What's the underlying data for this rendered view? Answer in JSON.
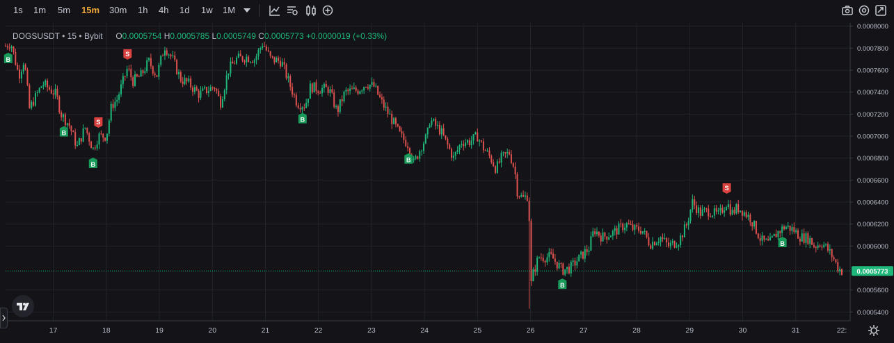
{
  "toolbar": {
    "timeframes": [
      "1s",
      "1m",
      "5m",
      "15m",
      "30m",
      "1h",
      "4h",
      "1d",
      "1w",
      "1M"
    ],
    "active_timeframe": "15m",
    "icons": [
      "chevron-down-icon",
      "indicator-line-icon",
      "compare-icon",
      "candles-icon",
      "plus-circle-icon"
    ],
    "right_icons": [
      "camera-icon",
      "settings-icon",
      "fullscreen-icon"
    ]
  },
  "legend": {
    "symbol": "DOGSUSDT",
    "interval": "15",
    "exchange": "Bybit",
    "o_label": "O",
    "o_value": "0.0005754",
    "h_label": "H",
    "h_value": "0.0005785",
    "l_label": "L",
    "l_value": "0.0005749",
    "c_label": "C",
    "c_value": "0.0005773",
    "change": "+0.0000019 (+0.33%)"
  },
  "colors": {
    "up": "#1fb87a",
    "down": "#e0524f",
    "background": "#131318",
    "grid": "#23242b",
    "price_tag": "#1fb87a",
    "sell": "#d9423f",
    "buy": "#1a9a5a",
    "active": "#f0a93a"
  },
  "chart_data": {
    "type": "candlestick",
    "series_name": "DOGSUSDT",
    "x_ticks": [
      "17",
      "18",
      "19",
      "20",
      "21",
      "22",
      "23",
      "24",
      "25",
      "26",
      "27",
      "28",
      "29",
      "30",
      "31",
      "22:"
    ],
    "y_ticks": [
      "0.0008000",
      "0.0007800",
      "0.0007600",
      "0.0007400",
      "0.0007200",
      "0.0007000",
      "0.0006800",
      "0.0006600",
      "0.0006400",
      "0.0006200",
      "0.0006000",
      "0.0005600",
      "0.0005400"
    ],
    "ylim": [
      0.000532,
      0.000803
    ],
    "x_range_days": [
      16.1,
      31.87
    ],
    "last_price": "0.0005773",
    "price_path": [
      [
        16.1,
        0.000782
      ],
      [
        16.2,
        0.000785
      ],
      [
        16.35,
        0.000755
      ],
      [
        16.45,
        0.00077
      ],
      [
        16.55,
        0.000725
      ],
      [
        16.8,
        0.000748
      ],
      [
        17.05,
        0.000738
      ],
      [
        17.15,
        0.00072
      ],
      [
        17.3,
        0.00071
      ],
      [
        17.45,
        0.00069
      ],
      [
        17.6,
        0.000708
      ],
      [
        17.75,
        0.000688
      ],
      [
        17.85,
        0.0007
      ],
      [
        18.0,
        0.0007
      ],
      [
        18.1,
        0.000728
      ],
      [
        18.2,
        0.000733
      ],
      [
        18.4,
        0.000762
      ],
      [
        18.5,
        0.00075
      ],
      [
        18.65,
        0.000755
      ],
      [
        18.8,
        0.000768
      ],
      [
        18.95,
        0.000755
      ],
      [
        19.1,
        0.000782
      ],
      [
        19.25,
        0.00077
      ],
      [
        19.4,
        0.000752
      ],
      [
        19.55,
        0.000748
      ],
      [
        19.75,
        0.000738
      ],
      [
        19.9,
        0.000742
      ],
      [
        20.05,
        0.000745
      ],
      [
        20.15,
        0.00073
      ],
      [
        20.3,
        0.00076
      ],
      [
        20.45,
        0.00077
      ],
      [
        20.65,
        0.000772
      ],
      [
        20.8,
        0.00077
      ],
      [
        20.95,
        0.000785
      ],
      [
        21.1,
        0.00077
      ],
      [
        21.3,
        0.000768
      ],
      [
        21.45,
        0.000748
      ],
      [
        21.6,
        0.00073
      ],
      [
        21.75,
        0.000728
      ],
      [
        21.85,
        0.000745
      ],
      [
        22.0,
        0.000743
      ],
      [
        22.2,
        0.000743
      ],
      [
        22.35,
        0.000722
      ],
      [
        22.5,
        0.00074
      ],
      [
        22.75,
        0.000742
      ],
      [
        22.9,
        0.000748
      ],
      [
        23.05,
        0.000745
      ],
      [
        23.2,
        0.00073
      ],
      [
        23.35,
        0.000718
      ],
      [
        23.55,
        0.0007
      ],
      [
        23.7,
        0.000692
      ],
      [
        23.8,
        0.000675
      ],
      [
        23.95,
        0.000692
      ],
      [
        24.05,
        0.0007
      ],
      [
        24.1,
        0.000715
      ],
      [
        24.3,
        0.000705
      ],
      [
        24.45,
        0.00069
      ],
      [
        24.55,
        0.00068
      ],
      [
        24.7,
        0.000695
      ],
      [
        24.85,
        0.000695
      ],
      [
        25.0,
        0.0007
      ],
      [
        25.1,
        0.00069
      ],
      [
        25.25,
        0.00068
      ],
      [
        25.35,
        0.00067
      ],
      [
        25.45,
        0.00068
      ],
      [
        25.6,
        0.000685
      ],
      [
        25.7,
        0.00067
      ],
      [
        25.75,
        0.00065
      ],
      [
        25.85,
        0.000643
      ],
      [
        25.97,
        0.000647
      ],
      [
        25.99,
        0.00056
      ],
      [
        26.05,
        0.000575
      ],
      [
        26.15,
        0.00059
      ],
      [
        26.4,
        0.00059
      ],
      [
        26.6,
        0.000578
      ],
      [
        26.75,
        0.00058
      ],
      [
        26.9,
        0.000588
      ],
      [
        27.1,
        0.000598
      ],
      [
        27.2,
        0.000615
      ],
      [
        27.35,
        0.000608
      ],
      [
        27.55,
        0.000612
      ],
      [
        27.8,
        0.00062
      ],
      [
        27.95,
        0.000615
      ],
      [
        28.1,
        0.000615
      ],
      [
        28.25,
        0.000602
      ],
      [
        28.45,
        0.000608
      ],
      [
        28.6,
        0.0006
      ],
      [
        28.8,
        0.000605
      ],
      [
        28.95,
        0.00062
      ],
      [
        29.05,
        0.00064
      ],
      [
        29.2,
        0.00063
      ],
      [
        29.35,
        0.000632
      ],
      [
        29.55,
        0.000628
      ],
      [
        29.7,
        0.00064
      ],
      [
        29.8,
        0.00063
      ],
      [
        29.9,
        0.000635
      ],
      [
        30.0,
        0.000632
      ],
      [
        30.15,
        0.000625
      ],
      [
        30.25,
        0.000615
      ],
      [
        30.35,
        0.000605
      ],
      [
        30.5,
        0.000602
      ],
      [
        30.65,
        0.000612
      ],
      [
        30.8,
        0.000618
      ],
      [
        30.95,
        0.000615
      ],
      [
        31.1,
        0.000608
      ],
      [
        31.25,
        0.000607
      ],
      [
        31.35,
        0.0006
      ],
      [
        31.5,
        0.000603
      ],
      [
        31.6,
        0.000597
      ],
      [
        31.7,
        0.00059
      ],
      [
        31.8,
        0.00058
      ],
      [
        31.87,
        0.0005773
      ]
    ],
    "min_spike": {
      "day": 25.98,
      "low": 0.000543
    },
    "signals": [
      {
        "label": "B",
        "type": "buy",
        "day": 16.15
      },
      {
        "label": "B",
        "type": "buy",
        "day": 17.2
      },
      {
        "label": "B",
        "type": "buy",
        "day": 17.75
      },
      {
        "label": "S",
        "type": "sell",
        "day": 17.85
      },
      {
        "label": "S",
        "type": "sell",
        "day": 18.4
      },
      {
        "label": "B",
        "type": "buy",
        "day": 21.7
      },
      {
        "label": "B",
        "type": "buy",
        "day": 23.7
      },
      {
        "label": "B",
        "type": "buy",
        "day": 26.6
      },
      {
        "label": "S",
        "type": "sell",
        "day": 29.7
      },
      {
        "label": "B",
        "type": "buy",
        "day": 30.75
      }
    ]
  }
}
